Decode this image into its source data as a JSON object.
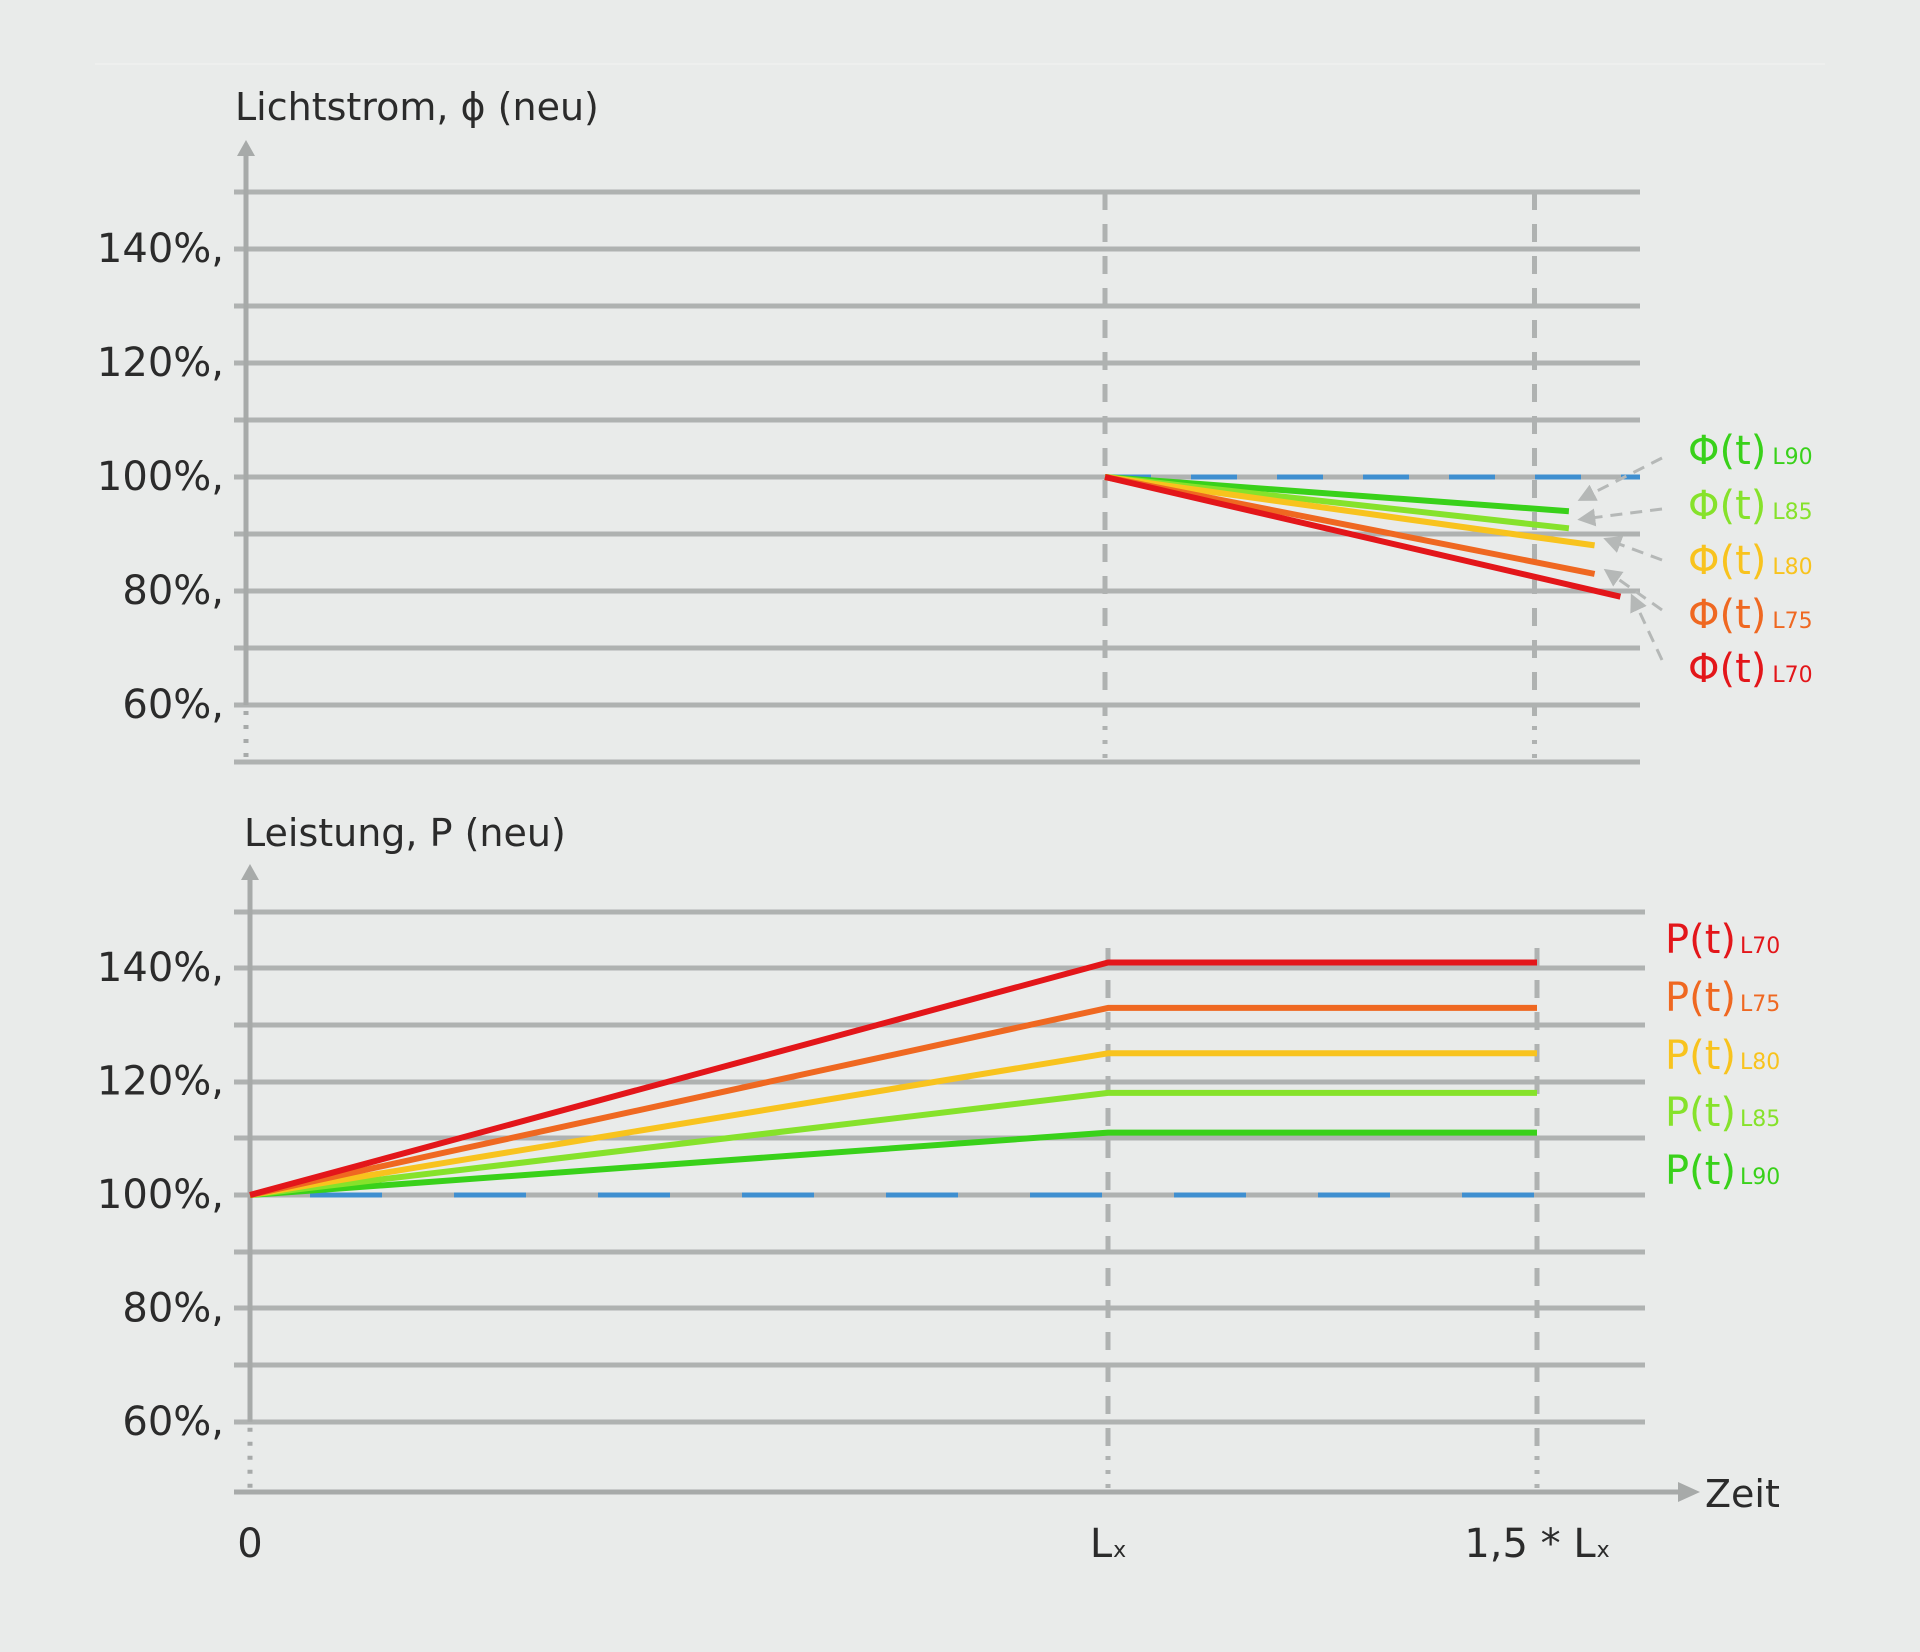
{
  "colors": {
    "background": "#e9ebea",
    "grid": "#afb2b1",
    "axis": "#a7aaa9",
    "reference": "#3f8fd0",
    "L70": "#e3161a",
    "L75": "#ef6821",
    "L80": "#f8c31e",
    "L85": "#86e22b",
    "L90": "#39d11a"
  },
  "chart_data": [
    {
      "type": "line",
      "ylabel": "Lichtstrom, ϕ (neu)",
      "yticks": [
        "140%,",
        "120%,",
        "100%,",
        "80%,",
        "60%,"
      ],
      "ytick_values": [
        140,
        120,
        100,
        80,
        60
      ],
      "ylim": [
        50,
        150
      ],
      "xlim": [
        0,
        1.6
      ],
      "reference_line": {
        "y": 100,
        "style": "dashed"
      },
      "gradient_segment": {
        "x": [
          0,
          1.0
        ],
        "y": [
          100,
          100
        ]
      },
      "series": [
        {
          "name": "Φ(t)",
          "sub": "L90",
          "key": "L90",
          "x": [
            1.0,
            1.54
          ],
          "y": [
            100,
            94
          ]
        },
        {
          "name": "Φ(t)",
          "sub": "L85",
          "key": "L85",
          "x": [
            1.0,
            1.54
          ],
          "y": [
            100,
            91
          ]
        },
        {
          "name": "Φ(t)",
          "sub": "L80",
          "key": "L80",
          "x": [
            1.0,
            1.57
          ],
          "y": [
            100,
            88
          ]
        },
        {
          "name": "Φ(t)",
          "sub": "L75",
          "key": "L75",
          "x": [
            1.0,
            1.57
          ],
          "y": [
            100,
            83
          ]
        },
        {
          "name": "Φ(t)",
          "sub": "L70",
          "key": "L70",
          "x": [
            1.0,
            1.6
          ],
          "y": [
            100,
            79
          ]
        }
      ]
    },
    {
      "type": "line",
      "ylabel": "Leistung, P (neu)",
      "xlabel": "Zeit",
      "yticks": [
        "140%,",
        "120%,",
        "100%,",
        "80%,",
        "60%,"
      ],
      "ytick_values": [
        140,
        120,
        100,
        80,
        60
      ],
      "ylim": [
        50,
        150
      ],
      "xlim": [
        0,
        1.6
      ],
      "xticks": [
        "0",
        "L",
        "1,5 * L"
      ],
      "xtick_values": [
        0,
        1.0,
        1.5
      ],
      "xtick_sub": "x",
      "reference_line": {
        "y": 100,
        "style": "dashed"
      },
      "series": [
        {
          "name": "P(t)",
          "sub": "L70",
          "key": "L70",
          "x": [
            0,
            1.0,
            1.5
          ],
          "y": [
            100,
            141,
            141
          ]
        },
        {
          "name": "P(t)",
          "sub": "L75",
          "key": "L75",
          "x": [
            0,
            1.0,
            1.5
          ],
          "y": [
            100,
            133,
            133
          ]
        },
        {
          "name": "P(t)",
          "sub": "L80",
          "key": "L80",
          "x": [
            0,
            1.0,
            1.5
          ],
          "y": [
            100,
            125,
            125
          ]
        },
        {
          "name": "P(t)",
          "sub": "L85",
          "key": "L85",
          "x": [
            0,
            1.0,
            1.5
          ],
          "y": [
            100,
            118,
            118
          ]
        },
        {
          "name": "P(t)",
          "sub": "L90",
          "key": "L90",
          "x": [
            0,
            1.0,
            1.5
          ],
          "y": [
            100,
            111,
            111
          ]
        }
      ]
    }
  ]
}
